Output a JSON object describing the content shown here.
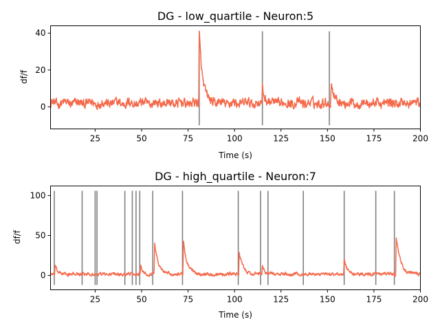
{
  "chart_data": [
    {
      "type": "line",
      "title": "DG - low_quartile - Neuron:5",
      "xlabel": "Time (s)",
      "ylabel": "df/f",
      "xlim": [
        1,
        200
      ],
      "ylim": [
        -12,
        44
      ],
      "xticks": [
        25,
        50,
        75,
        100,
        125,
        150,
        175,
        200
      ],
      "yticks": [
        0,
        20,
        40
      ],
      "grid": false,
      "line_color": "#f4694a",
      "marker_color": "#808080",
      "baseline": {
        "mean": 2,
        "noise": 2.2
      },
      "peaks": [
        {
          "t": 81,
          "amp": 39,
          "decay": 1.8
        },
        {
          "t": 115,
          "amp": 8,
          "decay": 1.5
        },
        {
          "t": 152,
          "amp": 12,
          "decay": 1.6
        }
      ],
      "event_markers": [
        81,
        115,
        151
      ],
      "marker_range": [
        -10,
        41
      ]
    },
    {
      "type": "line",
      "title": "DG - high_quartile - Neuron:7",
      "xlabel": "Time (s)",
      "ylabel": "df/f",
      "xlim": [
        1,
        200
      ],
      "ylim": [
        -18,
        112
      ],
      "xticks": [
        25,
        50,
        75,
        100,
        125,
        150,
        175,
        200
      ],
      "yticks": [
        0,
        50,
        100
      ],
      "grid": false,
      "line_color": "#f4694a",
      "marker_color": "#808080",
      "baseline": {
        "mean": 1.5,
        "noise": 1.8
      },
      "peaks": [
        {
          "t": 3.5,
          "amp": 12,
          "decay": 1.2
        },
        {
          "t": 49.5,
          "amp": 12,
          "decay": 1.2
        },
        {
          "t": 57,
          "amp": 40,
          "decay": 2.0
        },
        {
          "t": 72.5,
          "amp": 42,
          "decay": 2.0
        },
        {
          "t": 102.5,
          "amp": 30,
          "decay": 1.8
        },
        {
          "t": 115,
          "amp": 12,
          "decay": 1.2
        },
        {
          "t": 159,
          "amp": 18,
          "decay": 1.5
        },
        {
          "t": 187,
          "amp": 48,
          "decay": 2.2
        }
      ],
      "event_markers": [
        3,
        18,
        25,
        26,
        41,
        45,
        47,
        49,
        56,
        72,
        102,
        114,
        118,
        137,
        159,
        176,
        186
      ],
      "marker_range": [
        -12,
        106
      ]
    }
  ]
}
